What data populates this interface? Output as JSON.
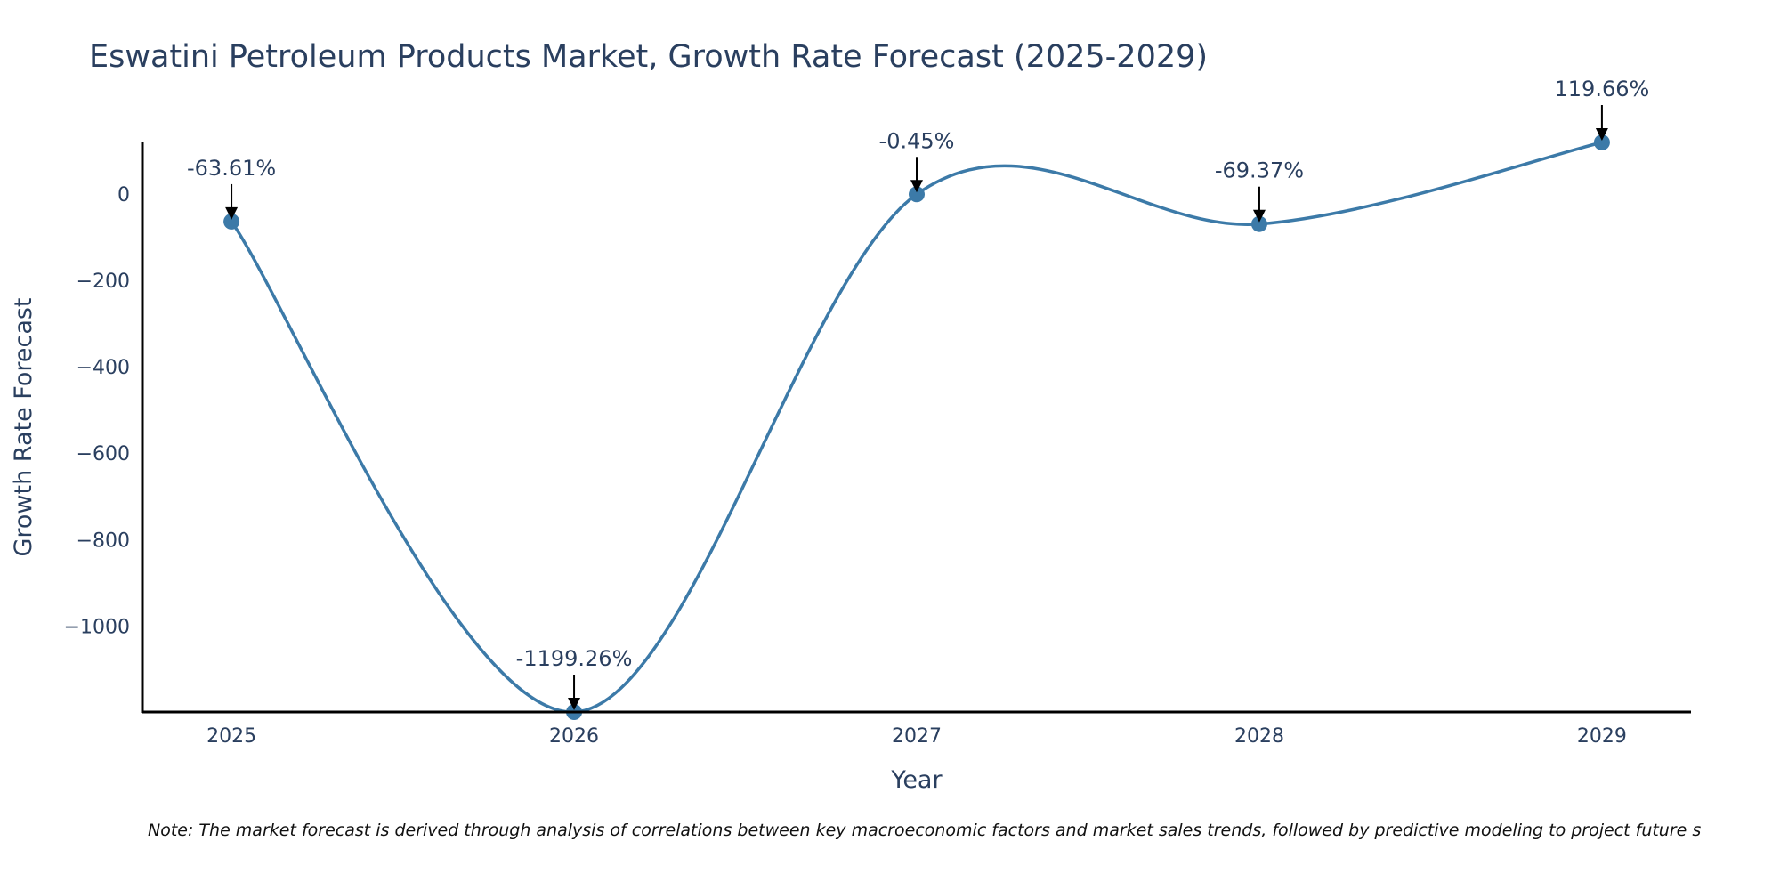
{
  "colors": {
    "line": "#3c7aa8",
    "marker": "#3c7aa8",
    "axis": "#000000",
    "text": "#2a3f5f"
  },
  "note": "Note: The market forecast is derived through analysis of correlations between key macroeconomic factors and market sales trends, followed by predictive modeling to project future s",
  "chart_data": {
    "type": "line",
    "title": "Eswatini Petroleum Products Market, Growth Rate Forecast (2025-2029)",
    "xlabel": "Year",
    "ylabel": "Growth Rate Forecast",
    "categories": [
      "2025",
      "2026",
      "2027",
      "2028",
      "2029"
    ],
    "values": [
      -63.61,
      -1199.26,
      -0.45,
      -69.37,
      119.66
    ],
    "annotations": [
      "-63.61%",
      "-1199.26%",
      "-0.45%",
      "-69.37%",
      "119.66%"
    ],
    "yticks": [
      0,
      -200,
      -400,
      -600,
      -800,
      -1000
    ],
    "ytick_labels": [
      "0",
      "−200",
      "−400",
      "−600",
      "−800",
      "−1000"
    ],
    "ylim": [
      -1199.26,
      119.66
    ],
    "xlim": [
      2024.74,
      2029.26
    ],
    "smoothing": "spline",
    "grid": false
  }
}
